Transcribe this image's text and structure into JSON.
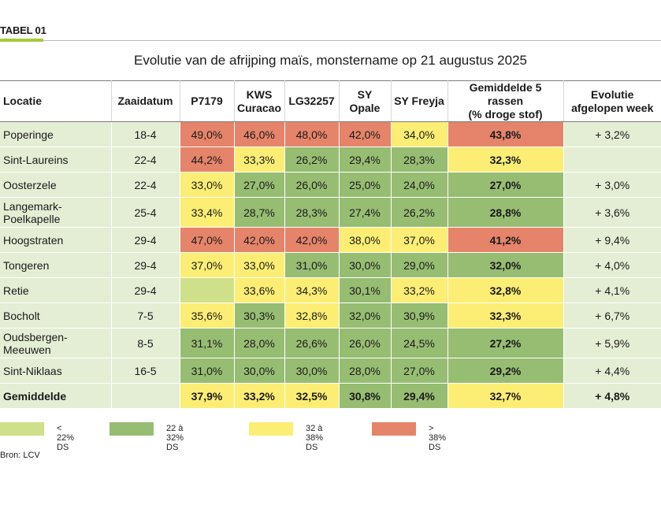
{
  "tag": "TABEL 01",
  "title": "Evolutie van de afrijping maïs, monstername op 21 augustus 2025",
  "headers": {
    "locatie": "Locatie",
    "zaaidatum": "Zaaidatum",
    "p7179": "P7179",
    "kws1": "KWS",
    "kws2": "Curacao",
    "lg": "LG32257",
    "opale": "SY Opale",
    "freyja": "SY Freyja",
    "gem1": "Gemiddelde 5 rassen",
    "gem2": "(% droge stof)",
    "evo1": "Evolutie",
    "evo2": "afgelopen week"
  },
  "rows": [
    {
      "loc1": "Poperinge",
      "loc2": "",
      "date": "18-4",
      "p7179": "49,0%",
      "kws": "46,0%",
      "lg": "48,0%",
      "opale": "42,0%",
      "freyja": "34,0%",
      "avg": "43,8%",
      "evo": "+ 3,2%"
    },
    {
      "loc1": "Sint-Laureins",
      "loc2": "",
      "date": "22-4",
      "p7179": "44,2%",
      "kws": "33,3%",
      "lg": "26,2%",
      "opale": "29,4%",
      "freyja": "28,3%",
      "avg": "32,3%",
      "evo": ""
    },
    {
      "loc1": "Oosterzele",
      "loc2": "",
      "date": "22-4",
      "p7179": "33,0%",
      "kws": "27,0%",
      "lg": "26,0%",
      "opale": "25,0%",
      "freyja": "24,0%",
      "avg": "27,0%",
      "evo": "+ 3,0%"
    },
    {
      "loc1": "Langemark-",
      "loc2": "Poelkapelle",
      "date": "25-4",
      "p7179": "33,4%",
      "kws": "28,7%",
      "lg": "28,3%",
      "opale": "27,4%",
      "freyja": "26,2%",
      "avg": "28,8%",
      "evo": "+ 3,6%"
    },
    {
      "loc1": "Hoogstraten",
      "loc2": "",
      "date": "29-4",
      "p7179": "47,0%",
      "kws": "42,0%",
      "lg": "42,0%",
      "opale": "38,0%",
      "freyja": "37,0%",
      "avg": "41,2%",
      "evo": "+ 9,4%"
    },
    {
      "loc1": "Tongeren",
      "loc2": "",
      "date": "29-4",
      "p7179": "37,0%",
      "kws": "33,0%",
      "lg": "31,0%",
      "opale": "30,0%",
      "freyja": "29,0%",
      "avg": "32,0%",
      "evo": "+ 4,0%"
    },
    {
      "loc1": "Retie",
      "loc2": "",
      "date": "29-4",
      "p7179": "",
      "kws": "33,6%",
      "lg": "34,3%",
      "opale": "30,1%",
      "freyja": "33,2%",
      "avg": "32,8%",
      "evo": "+ 4,1%"
    },
    {
      "loc1": "Bocholt",
      "loc2": "",
      "date": "7-5",
      "p7179": "35,6%",
      "kws": "30,3%",
      "lg": "32,8%",
      "opale": "32,0%",
      "freyja": "30,9%",
      "avg": "32,3%",
      "evo": "+ 6,7%"
    },
    {
      "loc1": "Oudsbergen-",
      "loc2": "Meeuwen",
      "date": "8-5",
      "p7179": "31,1%",
      "kws": "28,0%",
      "lg": "26,6%",
      "opale": "26,0%",
      "freyja": "24,5%",
      "avg": "27,2%",
      "evo": "+ 5,9%"
    },
    {
      "loc1": "Sint-Niklaas",
      "loc2": "",
      "date": "16-5",
      "p7179": "31,0%",
      "kws": "30,0%",
      "lg": "30,0%",
      "opale": "28,0%",
      "freyja": "27,0%",
      "avg": "29,2%",
      "evo": "+ 4,4%"
    }
  ],
  "total": {
    "label": "Gemiddelde",
    "p7179": "37,9%",
    "kws": "33,2%",
    "lg": "32,5%",
    "opale": "30,8%",
    "freyja": "29,4%",
    "avg": "32,7%",
    "evo": "+ 4,8%"
  },
  "legend": [
    {
      "label": "< 22% DS",
      "color": "#cfe08a"
    },
    {
      "label": "22 à 32% DS",
      "color": "#97bd73"
    },
    {
      "label": "32 à 38% DS",
      "color": "#fcee74"
    },
    {
      "label": "> 38% DS",
      "color": "#e5846a"
    }
  ],
  "source": "Bron: LCV"
}
